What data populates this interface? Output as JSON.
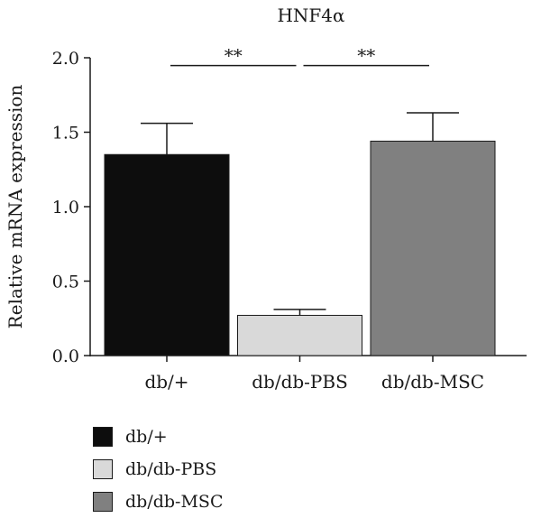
{
  "chart_data": {
    "type": "bar",
    "title": "HNF4α",
    "xlabel": "",
    "ylabel": "Relative mRNA expression",
    "ylim": [
      0,
      2.0
    ],
    "yticks": [
      0.0,
      0.5,
      1.0,
      1.5,
      2.0
    ],
    "ytick_labels": [
      "0.0",
      "0.5",
      "1.0",
      "1.5",
      "2.0"
    ],
    "categories": [
      "db/+",
      "db/db-PBS",
      "db/db-MSC"
    ],
    "values": [
      1.35,
      0.27,
      1.44
    ],
    "errors": [
      0.21,
      0.04,
      0.19
    ],
    "colors": [
      "#0d0d0d",
      "#d9d9d9",
      "#808080"
    ],
    "significance": [
      {
        "from": 0,
        "to": 1,
        "y": 1.96,
        "label": "**"
      },
      {
        "from": 1,
        "to": 2,
        "y": 1.96,
        "label": "**"
      }
    ],
    "grid": false,
    "legend": {
      "placement": "bottom-left",
      "items": [
        "db/+",
        "db/db-PBS",
        "db/db-MSC"
      ]
    }
  }
}
